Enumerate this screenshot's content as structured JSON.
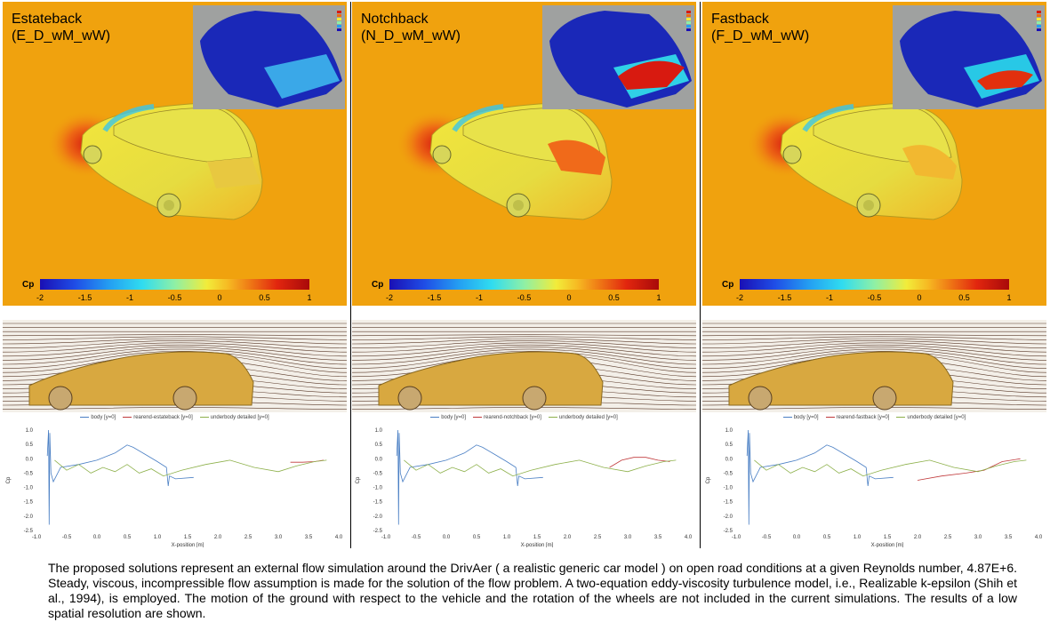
{
  "panels": [
    {
      "title_line1": "Estateback",
      "title_line2": "(E_D_wM_wW)",
      "legend_series": [
        "body [y=0]",
        "rearend-estateback [y=0]",
        "underbody detailed [y=0]"
      ],
      "rear_type": "estate"
    },
    {
      "title_line1": "Notchback",
      "title_line2": "(N_D_wM_wW)",
      "legend_series": [
        "body [y=0]",
        "rearend-notchback [y=0]",
        "underbody detailed [y=0]"
      ],
      "rear_type": "notch"
    },
    {
      "title_line1": "Fastback",
      "title_line2": "(F_D_wM_wW)",
      "legend_series": [
        "body [y=0]",
        "rearend-fastback [y=0]",
        "underbody detailed [y=0]"
      ],
      "rear_type": "fast"
    }
  ],
  "colorbar": {
    "label": "Cp",
    "ticks": [
      "-2",
      "-1.5",
      "-1",
      "-0.5",
      "0",
      "0.5",
      "1"
    ],
    "colors": [
      "#1a0fb4",
      "#24a0f2",
      "#8ef0a6",
      "#f2ec3a",
      "#f08016",
      "#a80a0a"
    ]
  },
  "chart_data": [
    {
      "type": "line",
      "xlabel": "X-position [m]",
      "ylabel": "Cp",
      "xlim": [
        -1.0,
        4.0
      ],
      "ylim": [
        -2.5,
        1.0
      ],
      "x_ticks": [
        "-1.0",
        "-0.5",
        "0.0",
        "0.5",
        "1.0",
        "1.5",
        "2.0",
        "2.5",
        "3.0",
        "3.5",
        "4.0"
      ],
      "y_ticks": [
        "1.0",
        "0.5",
        "0.0",
        "-0.5",
        "-1.0",
        "-1.5",
        "-2.0",
        "-2.5"
      ],
      "series": [
        {
          "name": "body [y=0]",
          "color": "#4a7fc4",
          "x": [
            -0.82,
            -0.8,
            -0.79,
            -0.78,
            -0.76,
            -0.72,
            -0.6,
            -0.3,
            0.0,
            0.3,
            0.5,
            0.6,
            0.8,
            1.0,
            1.15,
            1.18,
            1.2,
            1.3,
            1.6
          ],
          "y": [
            0.1,
            1.0,
            -2.3,
            0.9,
            -0.5,
            -0.8,
            -0.3,
            -0.2,
            -0.05,
            0.2,
            0.48,
            0.4,
            0.15,
            -0.1,
            -0.3,
            -0.95,
            -0.6,
            -0.7,
            -0.65
          ]
        },
        {
          "name": "rearend-estateback [y=0]",
          "color": "#c0393b",
          "x": [
            3.2,
            3.4,
            3.6,
            3.75
          ],
          "y": [
            -0.12,
            -0.12,
            -0.1,
            -0.05
          ]
        },
        {
          "name": "underbody detailed [y=0]",
          "color": "#8db04a",
          "x": [
            -0.7,
            -0.5,
            -0.3,
            -0.1,
            0.1,
            0.3,
            0.5,
            0.7,
            0.9,
            1.1,
            1.4,
            1.8,
            2.2,
            2.6,
            3.0,
            3.3,
            3.6,
            3.8
          ],
          "y": [
            -0.05,
            -0.4,
            -0.2,
            -0.5,
            -0.3,
            -0.45,
            -0.2,
            -0.5,
            -0.35,
            -0.6,
            -0.4,
            -0.2,
            -0.05,
            -0.3,
            -0.45,
            -0.25,
            -0.1,
            -0.05
          ]
        }
      ]
    },
    {
      "type": "line",
      "xlabel": "X-position [m]",
      "ylabel": "Cp",
      "xlim": [
        -1.0,
        4.0
      ],
      "ylim": [
        -2.5,
        1.0
      ],
      "x_ticks": [
        "-1.0",
        "-0.5",
        "0.0",
        "0.5",
        "1.0",
        "1.5",
        "2.0",
        "2.5",
        "3.0",
        "3.5",
        "4.0"
      ],
      "y_ticks": [
        "1.0",
        "0.5",
        "0.0",
        "-0.5",
        "-1.0",
        "-1.5",
        "-2.0",
        "-2.5"
      ],
      "series": [
        {
          "name": "body [y=0]",
          "color": "#4a7fc4",
          "x": [
            -0.82,
            -0.8,
            -0.79,
            -0.78,
            -0.76,
            -0.72,
            -0.6,
            -0.3,
            0.0,
            0.3,
            0.5,
            0.6,
            0.8,
            1.0,
            1.15,
            1.18,
            1.2,
            1.3,
            1.6
          ],
          "y": [
            0.1,
            1.0,
            -2.3,
            0.9,
            -0.5,
            -0.8,
            -0.3,
            -0.2,
            -0.05,
            0.2,
            0.48,
            0.4,
            0.15,
            -0.1,
            -0.3,
            -0.95,
            -0.6,
            -0.7,
            -0.65
          ]
        },
        {
          "name": "rearend-notchback [y=0]",
          "color": "#c0393b",
          "x": [
            2.7,
            2.9,
            3.1,
            3.3,
            3.5,
            3.7
          ],
          "y": [
            -0.3,
            -0.05,
            0.05,
            0.05,
            -0.05,
            -0.1
          ]
        },
        {
          "name": "underbody detailed [y=0]",
          "color": "#8db04a",
          "x": [
            -0.7,
            -0.5,
            -0.3,
            -0.1,
            0.1,
            0.3,
            0.5,
            0.7,
            0.9,
            1.1,
            1.4,
            1.8,
            2.2,
            2.6,
            3.0,
            3.3,
            3.6,
            3.8
          ],
          "y": [
            -0.05,
            -0.4,
            -0.2,
            -0.5,
            -0.3,
            -0.45,
            -0.2,
            -0.5,
            -0.35,
            -0.6,
            -0.4,
            -0.2,
            -0.05,
            -0.3,
            -0.45,
            -0.25,
            -0.1,
            -0.05
          ]
        }
      ]
    },
    {
      "type": "line",
      "xlabel": "X-position [m]",
      "ylabel": "Cp",
      "xlim": [
        -1.0,
        4.0
      ],
      "ylim": [
        -2.5,
        1.0
      ],
      "x_ticks": [
        "-1.0",
        "-0.5",
        "0.0",
        "0.5",
        "1.0",
        "1.5",
        "2.0",
        "2.5",
        "3.0",
        "3.5",
        "4.0"
      ],
      "y_ticks": [
        "1.0",
        "0.5",
        "0.0",
        "-0.5",
        "-1.0",
        "-1.5",
        "-2.0",
        "-2.5"
      ],
      "series": [
        {
          "name": "body [y=0]",
          "color": "#4a7fc4",
          "x": [
            -0.82,
            -0.8,
            -0.79,
            -0.78,
            -0.76,
            -0.72,
            -0.6,
            -0.3,
            0.0,
            0.3,
            0.5,
            0.6,
            0.8,
            1.0,
            1.15,
            1.18,
            1.2,
            1.3,
            1.6
          ],
          "y": [
            0.1,
            1.0,
            -2.3,
            0.9,
            -0.5,
            -0.8,
            -0.3,
            -0.2,
            -0.05,
            0.2,
            0.48,
            0.4,
            0.15,
            -0.1,
            -0.3,
            -0.95,
            -0.6,
            -0.7,
            -0.65
          ]
        },
        {
          "name": "rearend-fastback [y=0]",
          "color": "#c0393b",
          "x": [
            2.0,
            2.4,
            2.8,
            3.1,
            3.4,
            3.7
          ],
          "y": [
            -0.75,
            -0.6,
            -0.5,
            -0.4,
            -0.1,
            0.0
          ]
        },
        {
          "name": "underbody detailed [y=0]",
          "color": "#8db04a",
          "x": [
            -0.7,
            -0.5,
            -0.3,
            -0.1,
            0.1,
            0.3,
            0.5,
            0.7,
            0.9,
            1.1,
            1.4,
            1.8,
            2.2,
            2.6,
            3.0,
            3.3,
            3.6,
            3.8
          ],
          "y": [
            -0.05,
            -0.4,
            -0.2,
            -0.5,
            -0.3,
            -0.45,
            -0.2,
            -0.5,
            -0.35,
            -0.6,
            -0.4,
            -0.2,
            -0.05,
            -0.3,
            -0.45,
            -0.25,
            -0.1,
            -0.05
          ]
        }
      ]
    }
  ],
  "caption": "The proposed solutions represent an external flow simulation around the DrivAer ( a realistic generic car model ) on open road conditions at a given Reynolds number, 4.87E+6. Steady, viscous, incompressible flow assumption is made for the solution of the flow problem. A two-equation eddy-viscosity turbulence model, i.e., Realizable k-epsilon (Shih et al., 1994), is employed. The motion of the ground with respect to the vehicle and the rotation of the wheels are not included in the current simulations. The results of a low spatial resolution are shown."
}
